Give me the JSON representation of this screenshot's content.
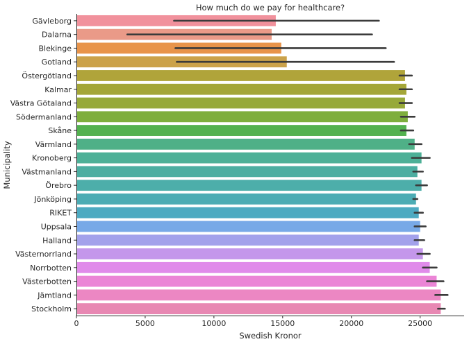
{
  "chart_data": {
    "type": "bar",
    "orientation": "horizontal",
    "title": "How much do we pay for healthcare?",
    "xlabel": "Swedish Kronor",
    "ylabel": "Municipality",
    "xlim": [
      0,
      28200
    ],
    "xticks": [
      0,
      5000,
      10000,
      15000,
      20000,
      25000
    ],
    "grid": false,
    "categories": [
      "Gävleborg",
      "Dalarna",
      "Blekinge",
      "Gotland",
      "Östergötland",
      "Kalmar",
      "Västra Götaland",
      "Södermanland",
      "Skåne",
      "Värmland",
      "Kronoberg",
      "Västmanland",
      "Örebro",
      "Jönköping",
      "RIKET",
      "Uppsala",
      "Halland",
      "Västernorrland",
      "Norrbotten",
      "Västerbotten",
      "Jämtland",
      "Stockholm"
    ],
    "values": [
      14500,
      14200,
      14900,
      15300,
      23900,
      24000,
      23900,
      24100,
      24000,
      24600,
      25100,
      24800,
      25100,
      24700,
      24900,
      25000,
      24900,
      25200,
      25700,
      26200,
      26500,
      26500
    ],
    "error_low": [
      7100,
      3700,
      7200,
      7300,
      23500,
      23500,
      23500,
      23600,
      23600,
      24200,
      24400,
      24500,
      24700,
      24500,
      24600,
      24600,
      24600,
      24800,
      25200,
      25500,
      26100,
      26300
    ],
    "error_high": [
      22000,
      21500,
      22500,
      23100,
      24400,
      24400,
      24400,
      24600,
      24500,
      25100,
      25700,
      25200,
      25500,
      24800,
      25200,
      25400,
      25300,
      25700,
      26200,
      26700,
      27000,
      26800
    ],
    "colors": [
      "#f1919c",
      "#ea9a88",
      "#e8944a",
      "#cba24a",
      "#b0a43a",
      "#a4a638",
      "#97a939",
      "#7eae3c",
      "#53b14f",
      "#4fb087",
      "#4db097",
      "#4caea1",
      "#4daeaa",
      "#4cacb4",
      "#4daac1",
      "#78a9e7",
      "#a3a1eb",
      "#c497eb",
      "#e08bea",
      "#eb85d6",
      "#ec87c3",
      "#e888b3"
    ]
  }
}
